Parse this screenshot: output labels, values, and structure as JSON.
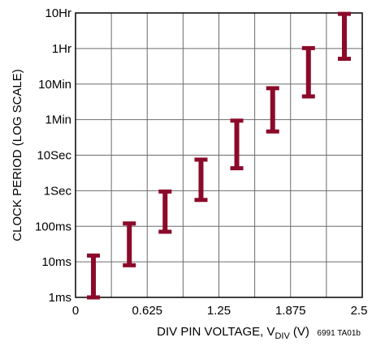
{
  "chart_data": {
    "type": "scatter",
    "xlabel": "DIV PIN VOLTAGE, V",
    "xlabel_sub": "DIV",
    "xlabel_unit": "(V)",
    "ylabel": "CLOCK PERIOD (LOG SCALE)",
    "figure_id": "6991 TA01b",
    "x_ticks": [
      "0",
      "0.625",
      "1.25",
      "1.875",
      "2.5"
    ],
    "x_tick_values": [
      0,
      0.625,
      1.25,
      1.875,
      2.5
    ],
    "xlim": [
      0,
      2.5
    ],
    "y_ticks": [
      "1ms",
      "10ms",
      "100ms",
      "1Sec",
      "10Sec",
      "1Min",
      "10Min",
      "1Hr",
      "10Hr"
    ],
    "y_tick_values_seconds": [
      0.001,
      0.01,
      0.1,
      1,
      10,
      60,
      600,
      3600,
      36000
    ],
    "y_scale": "log",
    "grid": true,
    "error_bar_color": "#8b0a2a",
    "series": [
      {
        "points": [
          {
            "x": 0.156,
            "y_min": 0.001,
            "y_max": 0.015
          },
          {
            "x": 0.469,
            "y_min": 0.008,
            "y_max": 0.12
          },
          {
            "x": 0.781,
            "y_min": 0.07,
            "y_max": 0.95
          },
          {
            "x": 1.094,
            "y_min": 0.55,
            "y_max": 7.5
          },
          {
            "x": 1.406,
            "y_min": 4.3,
            "y_max": 57
          },
          {
            "x": 1.719,
            "y_min": 33,
            "y_max": 460
          },
          {
            "x": 2.031,
            "y_min": 270,
            "y_max": 3700
          },
          {
            "x": 2.344,
            "y_min": 2150,
            "y_max": 34000
          }
        ]
      }
    ]
  }
}
